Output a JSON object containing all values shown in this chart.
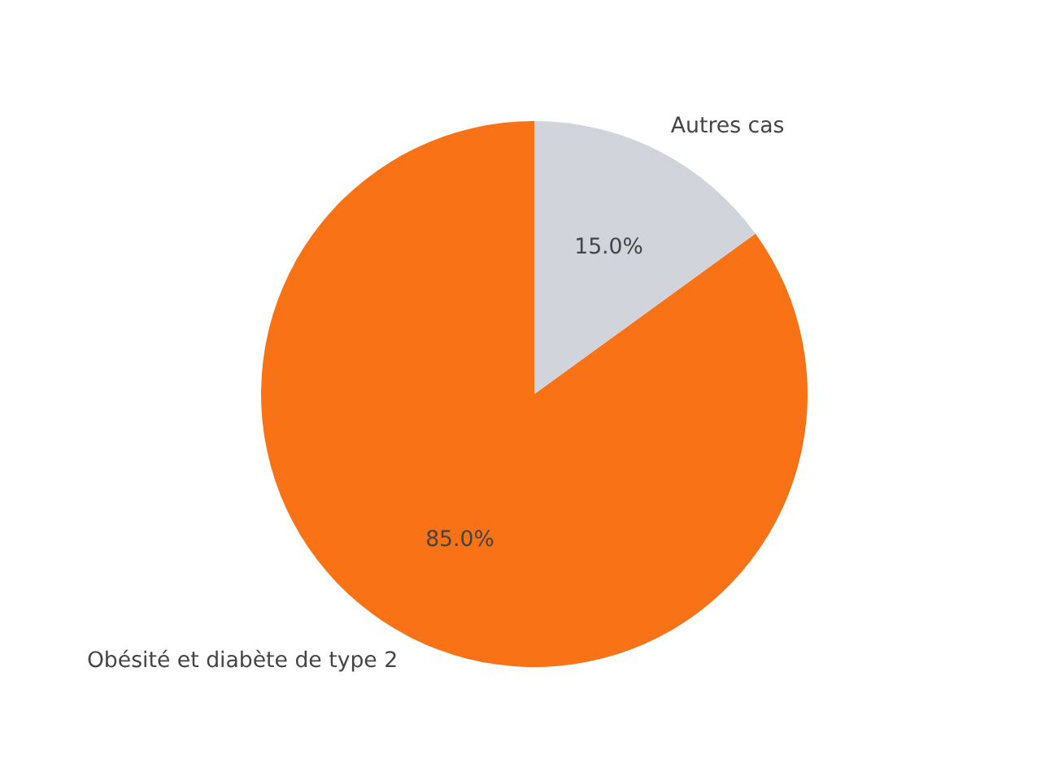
{
  "chart_data": {
    "type": "pie",
    "categories": [
      "Obésité et diabète de type 2",
      "Autres cas"
    ],
    "values": [
      85,
      15
    ],
    "colors": [
      "#f97316",
      "#d1d5db"
    ],
    "value_labels": [
      "85.0%",
      "15.0%"
    ]
  }
}
